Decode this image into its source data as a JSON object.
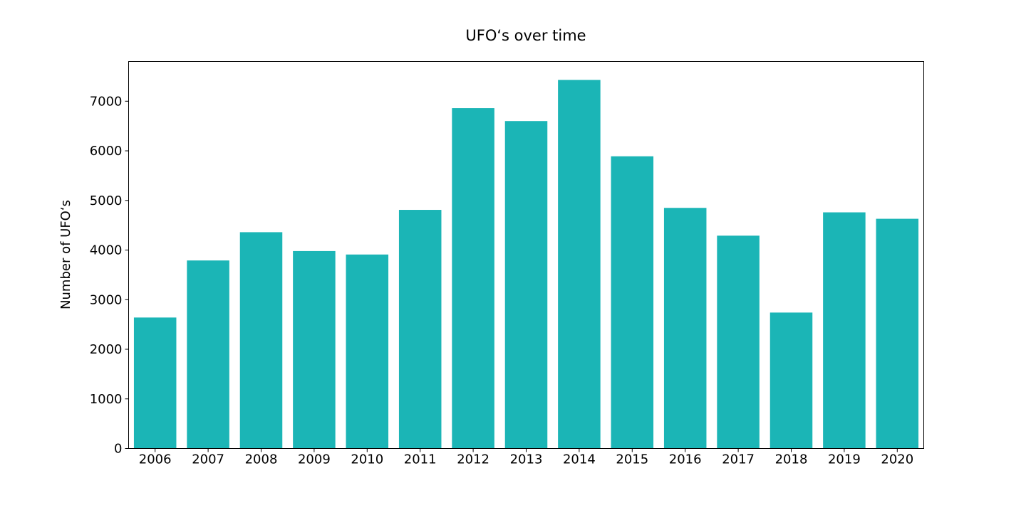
{
  "chart_data": {
    "type": "bar",
    "title": "UFO‘s over time",
    "xlabel": "",
    "ylabel": "Number of UFO‘s",
    "categories": [
      "2006",
      "2007",
      "2008",
      "2009",
      "2010",
      "2011",
      "2012",
      "2013",
      "2014",
      "2015",
      "2016",
      "2017",
      "2018",
      "2019",
      "2020"
    ],
    "values": [
      2640,
      3790,
      4360,
      3980,
      3910,
      4810,
      6860,
      6600,
      7430,
      5890,
      4850,
      4290,
      2740,
      4760,
      4630
    ],
    "ylim": [
      0,
      7800
    ],
    "yticks": [
      0,
      1000,
      2000,
      3000,
      4000,
      5000,
      6000,
      7000
    ],
    "grid": false,
    "legend": "none",
    "bar_color": "#1bb5b6",
    "axis_color": "#000000"
  }
}
